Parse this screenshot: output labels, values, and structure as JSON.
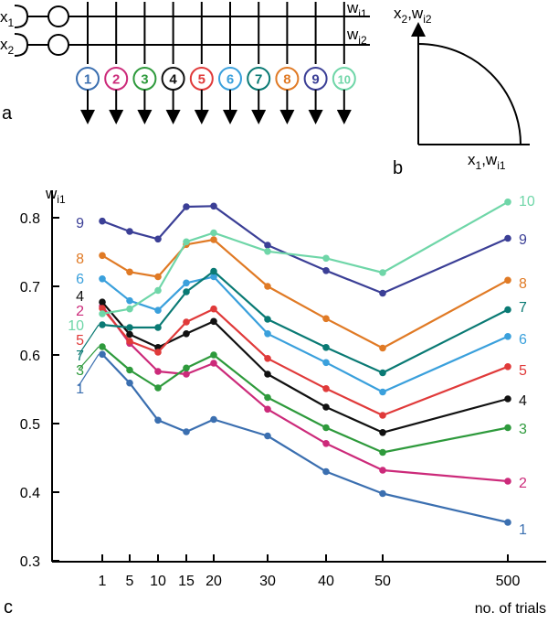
{
  "panel_a": {
    "label": "a",
    "inputs": [
      {
        "base": "x",
        "sub": "1",
        "line_base": "w",
        "line_sub": "i1"
      },
      {
        "base": "x",
        "sub": "2",
        "line_base": "w",
        "line_sub": "i2"
      }
    ],
    "units": [
      {
        "label": "1",
        "color": "#3b6fb0"
      },
      {
        "label": "2",
        "color": "#cc2a7a"
      },
      {
        "label": "3",
        "color": "#2e9a3c"
      },
      {
        "label": "4",
        "color": "#111111"
      },
      {
        "label": "5",
        "color": "#e03a3a"
      },
      {
        "label": "6",
        "color": "#3aa0dc"
      },
      {
        "label": "7",
        "color": "#0a7a74"
      },
      {
        "label": "8",
        "color": "#e07a25"
      },
      {
        "label": "9",
        "color": "#3b3f96"
      },
      {
        "label": "10",
        "color": "#6fd6a8"
      }
    ]
  },
  "panel_b": {
    "label": "b",
    "y_axis": {
      "base": "x",
      "sub": "2",
      "sep": ",",
      "base2": "w",
      "sub2": "i2"
    },
    "x_axis": {
      "base": "x",
      "sub": "1",
      "sep": ",",
      "base2": "w",
      "sub2": "i1"
    }
  },
  "panel_c": {
    "label": "c"
  },
  "chart_data": {
    "type": "line",
    "ylabel": {
      "base": "w",
      "sub": "i1"
    },
    "xlabel": "no. of trials",
    "ylim": [
      0.3,
      0.85
    ],
    "y_ticks": [
      "0.3",
      "0.4",
      "0.5",
      "0.6",
      "0.7",
      "0.8"
    ],
    "categories": [
      "1",
      "5",
      "10",
      "15",
      "20",
      "30",
      "40",
      "50",
      "500"
    ],
    "series": [
      {
        "name": "1",
        "color": "#3b6fb0",
        "values": [
          0.601,
          0.559,
          0.505,
          0.488,
          0.506,
          0.482,
          0.43,
          0.398,
          0.356
        ]
      },
      {
        "name": "2",
        "color": "#cc2a7a",
        "values": [
          0.671,
          0.617,
          0.576,
          0.572,
          0.588,
          0.521,
          0.471,
          0.432,
          0.416
        ]
      },
      {
        "name": "3",
        "color": "#2e9a3c",
        "values": [
          0.612,
          0.578,
          0.552,
          0.581,
          0.6,
          0.538,
          0.494,
          0.458,
          0.494
        ]
      },
      {
        "name": "4",
        "color": "#111111",
        "values": [
          0.677,
          0.63,
          0.611,
          0.631,
          0.649,
          0.572,
          0.524,
          0.487,
          0.536
        ]
      },
      {
        "name": "5",
        "color": "#e03a3a",
        "values": [
          0.668,
          0.62,
          0.604,
          0.648,
          0.667,
          0.595,
          0.551,
          0.512,
          0.583
        ]
      },
      {
        "name": "6",
        "color": "#3aa0dc",
        "values": [
          0.711,
          0.679,
          0.665,
          0.705,
          0.714,
          0.631,
          0.589,
          0.546,
          0.627
        ]
      },
      {
        "name": "7",
        "color": "#0a7a74",
        "values": [
          0.644,
          0.64,
          0.64,
          0.692,
          0.722,
          0.652,
          0.611,
          0.574,
          0.666
        ]
      },
      {
        "name": "8",
        "color": "#e07a25",
        "values": [
          0.745,
          0.721,
          0.714,
          0.761,
          0.768,
          0.7,
          0.653,
          0.61,
          0.709
        ]
      },
      {
        "name": "9",
        "color": "#3b3f96",
        "values": [
          0.795,
          0.78,
          0.769,
          0.816,
          0.817,
          0.76,
          0.723,
          0.69,
          0.77
        ]
      },
      {
        "name": "10",
        "color": "#6fd6a8",
        "values": [
          0.66,
          0.667,
          0.694,
          0.765,
          0.778,
          0.751,
          0.741,
          0.72,
          0.823
        ]
      }
    ],
    "left_labels": [
      "9",
      "8",
      "6",
      "4",
      "2",
      "10",
      "5",
      "7",
      "3",
      "1"
    ],
    "right_labels": [
      "10",
      "9",
      "8",
      "7",
      "6",
      "5",
      "4",
      "3",
      "2",
      "1"
    ],
    "grid": false
  }
}
